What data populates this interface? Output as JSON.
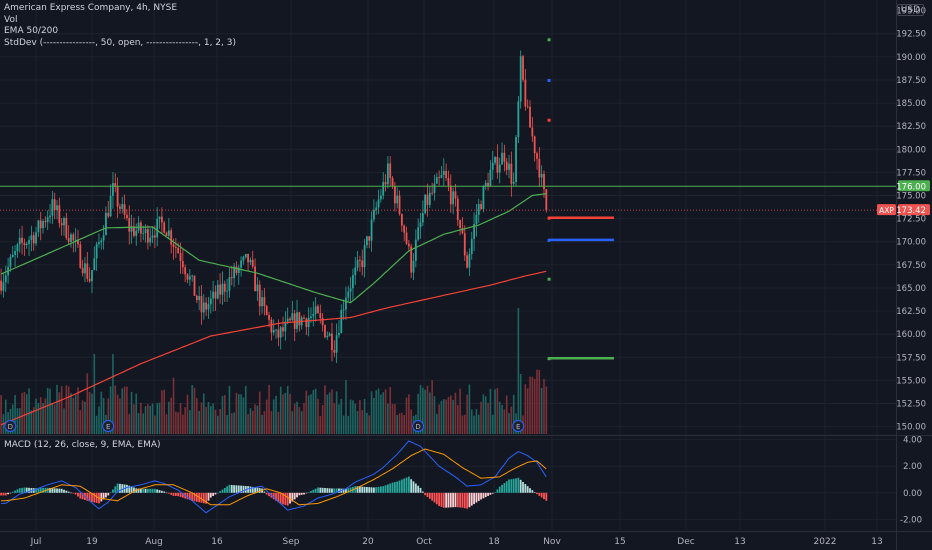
{
  "header": {
    "symbol_line": "American Express Company, 4h, NYSE",
    "vol_label": "Vol",
    "ema_label": "EMA 50/200",
    "stddev_label": "StdDev (----------------, 50, open, ----------------, 1, 2, 3)",
    "currency": "USD"
  },
  "macd": {
    "label": "MACD (12, 26, close, 9, EMA, EMA)"
  },
  "colors": {
    "background": "#131722",
    "up": "#26a69a",
    "down": "#ef5350",
    "ema50": "#4caf50",
    "ema200": "#f44336",
    "macd_line": "#2962ff",
    "signal_line": "#ff9800",
    "level_green": "#4caf50",
    "level_blue": "#2962ff",
    "level_red": "#f44336"
  },
  "chart_data": [
    {
      "type": "candlestick",
      "title": "American Express Company, 4h, NYSE",
      "price_axis": {
        "ticks": [
          "192.50",
          "190.00",
          "187.50",
          "185.00",
          "182.50",
          "180.00",
          "177.50",
          "175.00",
          "172.50",
          "170.00",
          "167.50",
          "165.00",
          "162.50",
          "160.00",
          "157.50",
          "155.00",
          "152.50",
          "150.00"
        ],
        "top_tick": "195.00",
        "ylim": [
          149.2,
          195.5
        ]
      },
      "x_axis": {
        "labels": [
          "Jul",
          "19",
          "Aug",
          "16",
          "Sep",
          "20",
          "Oct",
          "18",
          "Nov",
          "15",
          "Dec",
          "13",
          "2022",
          "13"
        ]
      },
      "price_series": {
        "description": "approximate 4h candle anchors (index, close)",
        "anchors": [
          [
            0,
            165.8
          ],
          [
            8,
            169.5
          ],
          [
            15,
            171
          ],
          [
            22,
            173.8
          ],
          [
            30,
            170.5
          ],
          [
            38,
            166
          ],
          [
            48,
            175.5
          ],
          [
            55,
            171.5
          ],
          [
            62,
            170.8
          ],
          [
            70,
            172
          ],
          [
            78,
            168
          ],
          [
            86,
            162.5
          ],
          [
            92,
            164
          ],
          [
            100,
            166.5
          ],
          [
            106,
            168
          ],
          [
            112,
            163
          ],
          [
            118,
            159.6
          ],
          [
            126,
            161.5
          ],
          [
            135,
            162
          ],
          [
            143,
            159
          ],
          [
            148,
            164.5
          ],
          [
            155,
            168
          ],
          [
            162,
            174.5
          ],
          [
            166,
            177.5
          ],
          [
            172,
            172.5
          ],
          [
            176,
            167.5
          ],
          [
            182,
            174
          ],
          [
            190,
            177.2
          ],
          [
            196,
            173
          ],
          [
            200,
            167.6
          ],
          [
            204,
            173
          ],
          [
            210,
            177.5
          ],
          [
            216,
            179.5
          ],
          [
            220,
            176.2
          ],
          [
            223,
            189
          ],
          [
            226,
            183.5
          ],
          [
            231,
            178
          ],
          [
            234,
            173.4
          ]
        ],
        "total_candles": 235
      },
      "ema50_anchors": [
        [
          0,
          166.5
        ],
        [
          20,
          168.7
        ],
        [
          45,
          171.5
        ],
        [
          65,
          171.6
        ],
        [
          85,
          168
        ],
        [
          110,
          166.6
        ],
        [
          135,
          164.5
        ],
        [
          150,
          163.4
        ],
        [
          160,
          165.5
        ],
        [
          175,
          169
        ],
        [
          190,
          170.8
        ],
        [
          205,
          171.8
        ],
        [
          218,
          173.3
        ],
        [
          228,
          175
        ],
        [
          234,
          175.2
        ]
      ],
      "ema200_anchors": [
        [
          0,
          150.2
        ],
        [
          30,
          153.3
        ],
        [
          60,
          156.8
        ],
        [
          90,
          159.8
        ],
        [
          120,
          161.2
        ],
        [
          150,
          161.8
        ],
        [
          165,
          162.8
        ],
        [
          190,
          164.2
        ],
        [
          210,
          165.3
        ],
        [
          225,
          166.3
        ],
        [
          234,
          166.8
        ]
      ],
      "last_price": {
        "label": "AXP",
        "value": "173.42"
      },
      "resistance": {
        "value": "176.00",
        "level": 176.0
      },
      "stddev_bands": [
        {
          "level": 191.9,
          "color": "#4caf50"
        },
        {
          "level": 187.5,
          "color": "#2962ff"
        },
        {
          "level": 183.2,
          "color": "#f44336"
        },
        {
          "level": 172.6,
          "color": "#f44336"
        },
        {
          "level": 170.2,
          "color": "#2962ff"
        },
        {
          "level": 166.0,
          "color": "#4caf50"
        },
        {
          "level": 157.4,
          "color": "#4caf50"
        }
      ],
      "event_markers": [
        {
          "index": 4,
          "letter": "D"
        },
        {
          "index": 46,
          "letter": "E"
        },
        {
          "index": 179,
          "letter": "D"
        },
        {
          "index": 222,
          "letter": "E"
        }
      ]
    },
    {
      "type": "macd",
      "title": "MACD (12, 26, close, 9, EMA, EMA)",
      "ticks": [
        "4.00",
        "2.00",
        "0.00",
        "-2.00"
      ],
      "ylim": [
        -2.8,
        4.2
      ],
      "macd_anchors": [
        [
          2,
          -0.8
        ],
        [
          8,
          -0.1
        ],
        [
          14,
          0.2
        ],
        [
          20,
          0.6
        ],
        [
          26,
          0.9
        ],
        [
          32,
          0.4
        ],
        [
          38,
          -0.6
        ],
        [
          42,
          -1.2
        ],
        [
          46,
          -0.7
        ],
        [
          50,
          0.1
        ],
        [
          54,
          0.4
        ],
        [
          60,
          0.6
        ],
        [
          66,
          0.9
        ],
        [
          70,
          0.7
        ],
        [
          76,
          0.2
        ],
        [
          82,
          -0.6
        ],
        [
          88,
          -1.5
        ],
        [
          93,
          -0.9
        ],
        [
          98,
          -0.3
        ],
        [
          106,
          0.3
        ],
        [
          112,
          0.5
        ],
        [
          118,
          -0.5
        ],
        [
          123,
          -1.3
        ],
        [
          130,
          -1.0
        ],
        [
          136,
          -0.4
        ],
        [
          142,
          -0.1
        ],
        [
          148,
          0.3
        ],
        [
          152,
          0.8
        ],
        [
          160,
          1.4
        ],
        [
          164,
          1.9
        ],
        [
          170,
          2.9
        ],
        [
          175,
          3.9
        ],
        [
          180,
          3.5
        ],
        [
          188,
          2.0
        ],
        [
          195,
          1.2
        ],
        [
          200,
          0.5
        ],
        [
          206,
          0.6
        ],
        [
          212,
          1.2
        ],
        [
          218,
          2.6
        ],
        [
          222,
          3.1
        ],
        [
          226,
          2.8
        ],
        [
          230,
          2.3
        ],
        [
          234,
          1.2
        ]
      ],
      "signal_anchors": [
        [
          2,
          -0.6
        ],
        [
          10,
          -0.4
        ],
        [
          18,
          0.1
        ],
        [
          26,
          0.6
        ],
        [
          34,
          0.5
        ],
        [
          42,
          -0.4
        ],
        [
          50,
          -0.6
        ],
        [
          58,
          0.2
        ],
        [
          66,
          0.6
        ],
        [
          74,
          0.6
        ],
        [
          82,
          0.0
        ],
        [
          90,
          -0.9
        ],
        [
          98,
          -0.9
        ],
        [
          106,
          -0.2
        ],
        [
          114,
          0.3
        ],
        [
          120,
          0.0
        ],
        [
          128,
          -0.9
        ],
        [
          136,
          -0.8
        ],
        [
          144,
          -0.3
        ],
        [
          152,
          0.3
        ],
        [
          160,
          1.0
        ],
        [
          168,
          1.8
        ],
        [
          176,
          2.8
        ],
        [
          182,
          3.3
        ],
        [
          190,
          2.9
        ],
        [
          198,
          1.9
        ],
        [
          206,
          1.1
        ],
        [
          214,
          1.2
        ],
        [
          220,
          1.8
        ],
        [
          226,
          2.3
        ],
        [
          230,
          2.4
        ],
        [
          234,
          1.8
        ]
      ]
    }
  ]
}
